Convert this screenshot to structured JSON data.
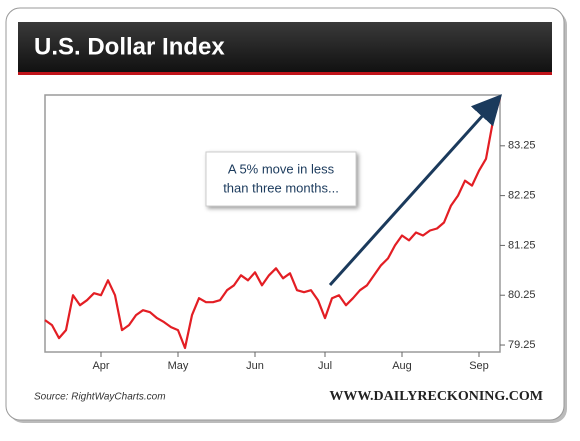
{
  "chart_data": {
    "type": "line",
    "title": "U.S. Dollar Index",
    "annotation": [
      "A 5% move in less",
      "than three months..."
    ],
    "source": "Source: RightWayCharts.com",
    "brand": "WWW.DAILYRECKONING.COM",
    "categories": [
      null,
      null,
      null,
      null,
      null,
      null,
      null,
      null,
      "Apr",
      null,
      null,
      null,
      null,
      null,
      null,
      null,
      null,
      null,
      null,
      "May",
      null,
      null,
      null,
      null,
      null,
      null,
      null,
      null,
      null,
      null,
      "Jun",
      null,
      null,
      null,
      null,
      null,
      null,
      null,
      null,
      null,
      "Jul",
      null,
      null,
      null,
      null,
      null,
      null,
      null,
      null,
      null,
      null,
      "Aug",
      null,
      null,
      null,
      null,
      null,
      null,
      null,
      null,
      null,
      null,
      "Sep",
      null,
      null,
      null
    ],
    "values": [
      79.75,
      79.65,
      79.39,
      79.55,
      80.25,
      80.05,
      80.15,
      80.29,
      80.25,
      80.55,
      80.25,
      79.55,
      79.65,
      79.85,
      79.95,
      79.91,
      79.79,
      79.71,
      79.61,
      79.55,
      79.19,
      79.85,
      80.19,
      80.11,
      80.11,
      80.15,
      80.35,
      80.45,
      80.65,
      80.55,
      80.71,
      80.45,
      80.65,
      80.79,
      80.59,
      80.69,
      80.35,
      80.31,
      80.35,
      80.15,
      79.79,
      80.19,
      80.25,
      80.05,
      80.19,
      80.35,
      80.45,
      80.65,
      80.85,
      80.99,
      81.25,
      81.45,
      81.35,
      81.51,
      81.45,
      81.55,
      81.59,
      81.71,
      82.05,
      82.25,
      82.55,
      82.45,
      82.75,
      82.99,
      83.75,
      84.21
    ],
    "color": "#e31e24",
    "ylim": [
      79.11,
      84.27
    ],
    "yticks": [
      79.25,
      80.25,
      81.25,
      82.25,
      83.25
    ],
    "grid": false
  }
}
